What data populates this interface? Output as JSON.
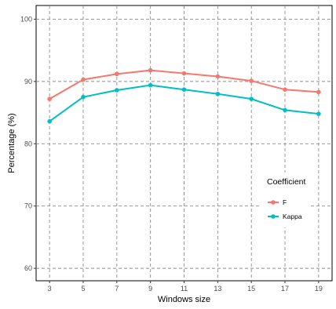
{
  "chart_data": {
    "type": "line",
    "x": [
      3,
      5,
      7,
      9,
      11,
      13,
      15,
      17,
      19
    ],
    "series": [
      {
        "name": "F",
        "color": "#F8766D",
        "values": [
          87.2,
          90.3,
          91.2,
          91.8,
          91.3,
          90.8,
          90.1,
          88.7,
          88.3
        ]
      },
      {
        "name": "Kappa",
        "color": "#00BFC4",
        "values": [
          83.6,
          87.5,
          88.6,
          89.4,
          88.7,
          88.0,
          87.2,
          85.4,
          84.8
        ]
      }
    ],
    "xlabel": "Windows size",
    "ylabel": "Percentage (%)",
    "xlim": [
      2.2,
      19.8
    ],
    "ylim": [
      58,
      102.2
    ],
    "xticks": [
      3,
      5,
      7,
      9,
      11,
      13,
      15,
      17,
      19
    ],
    "yticks": [
      60,
      70,
      80,
      90,
      100
    ],
    "grid": true,
    "legend": {
      "title": "Coefficient",
      "placement": "right",
      "items": [
        "F",
        "Kappa"
      ]
    }
  }
}
